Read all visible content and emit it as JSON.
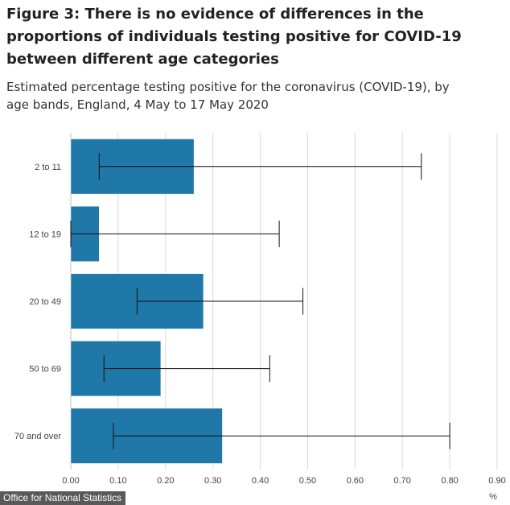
{
  "title": "Figure 3: There is no evidence of differences in the proportions of individuals testing positive for COVID-19 between different age categories",
  "subtitle": "Estimated percentage testing positive for the coronavirus (COVID-19), by age bands, England, 4 May to 17 May 2020",
  "credit": "Office for National Statistics",
  "colors": {
    "bar": "#1f78a8",
    "bar_stroke": "#ffffff",
    "error_bar": "#111111",
    "grid": "#d9d9d9",
    "axis": "#bfbfbf"
  },
  "chart_data": {
    "type": "bar",
    "orientation": "horizontal",
    "categories": [
      "2 to 11",
      "12 to 19",
      "20 to 49",
      "50 to 69",
      "70 and over"
    ],
    "values": [
      0.26,
      0.06,
      0.28,
      0.19,
      0.32
    ],
    "error_low": [
      0.06,
      0.0,
      0.14,
      0.07,
      0.09
    ],
    "error_high": [
      0.74,
      0.44,
      0.49,
      0.42,
      0.8
    ],
    "x_ticks": [
      "0.00",
      "0.10",
      "0.20",
      "0.30",
      "0.40",
      "0.50",
      "0.60",
      "0.70",
      "0.80",
      "0.90"
    ],
    "xlim": [
      0,
      0.9
    ],
    "xlabel": "%",
    "ylabel": "",
    "grid": true
  }
}
